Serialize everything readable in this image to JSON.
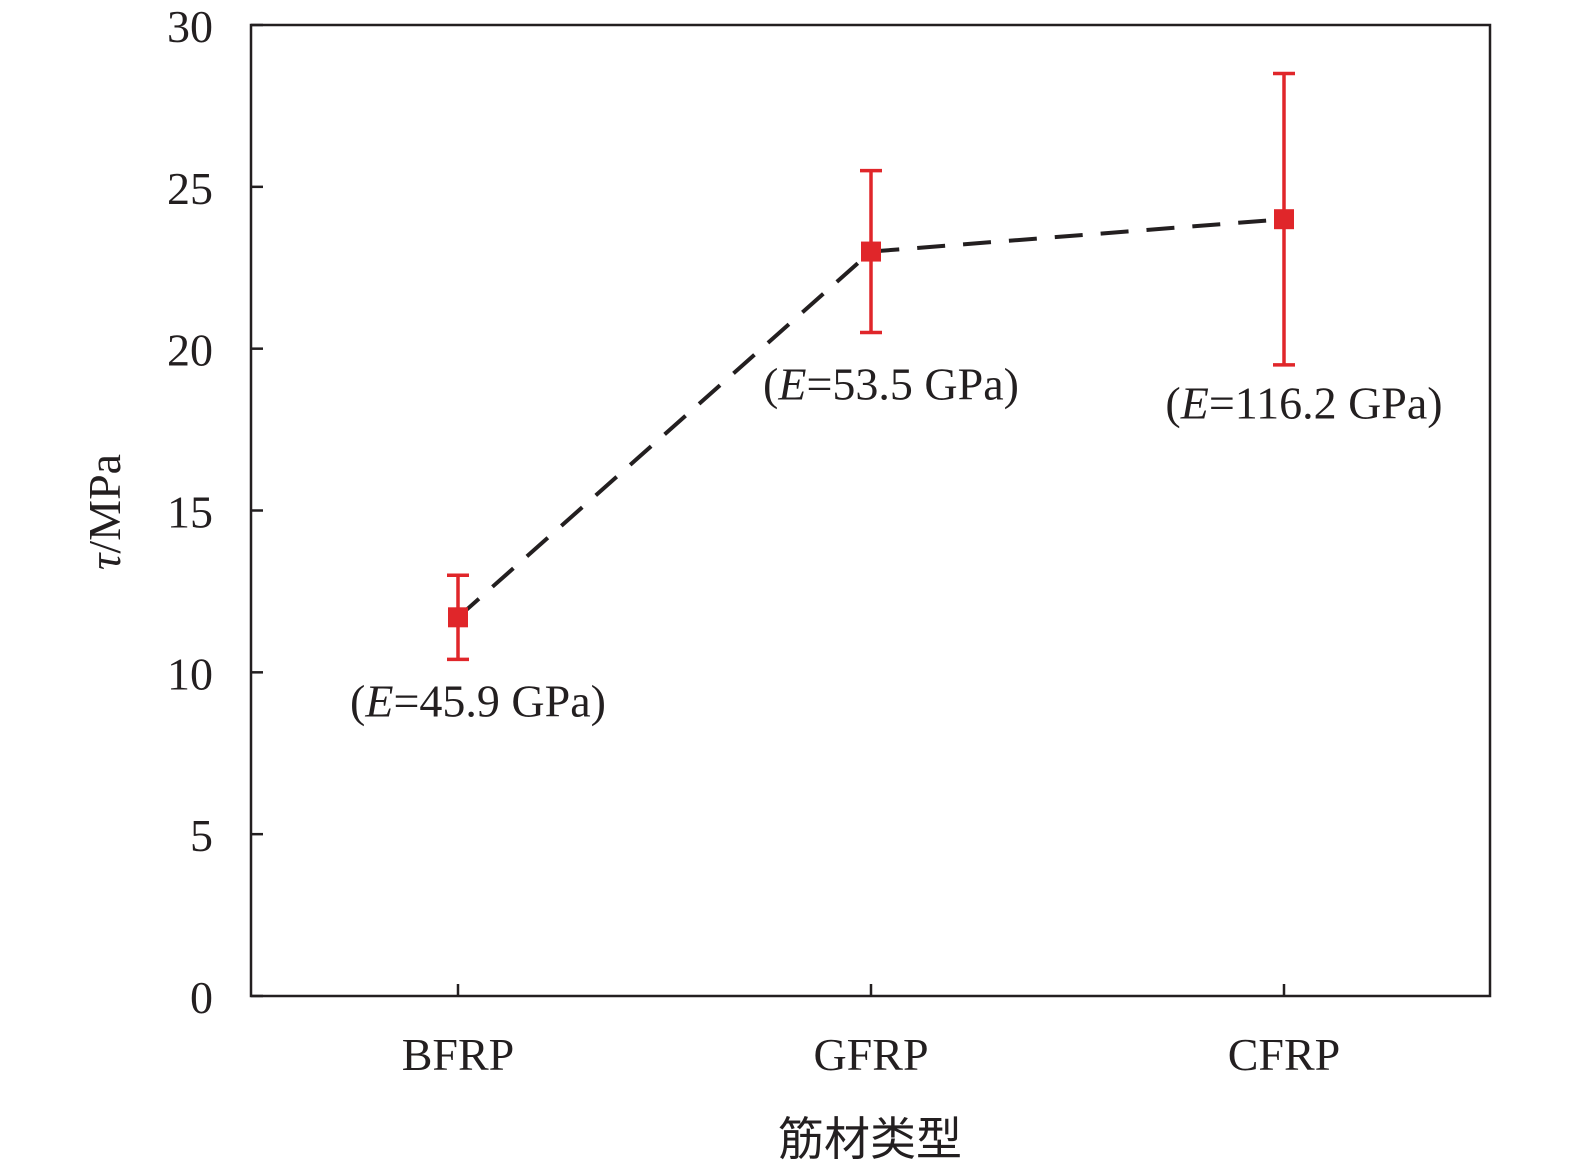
{
  "chart_data": {
    "type": "line",
    "categories": [
      "BFRP",
      "GFRP",
      "CFRP"
    ],
    "xlabel": "筋材类型",
    "ylabel": "τ/MPa",
    "ylabel_symbol": "τ",
    "ylabel_unit": "/MPa",
    "ylim": [
      0,
      30
    ],
    "yticks": [
      0,
      5,
      10,
      15,
      20,
      25,
      30
    ],
    "grid": false,
    "legend": "none",
    "series": [
      {
        "values": [
          11.7,
          23.0,
          24.0
        ],
        "err_low": [
          10.4,
          20.5,
          19.5
        ],
        "err_high": [
          13.0,
          25.5,
          28.5
        ],
        "line_style": "dashed"
      }
    ],
    "annotations": [
      {
        "category": "BFRP",
        "prefix": "(",
        "symbol": "E",
        "text": "=45.9 GPa)",
        "anchor_y": 9.1
      },
      {
        "category": "GFRP",
        "prefix": "(",
        "symbol": "E",
        "text": "=53.5 GPa)",
        "anchor_y": 18.9
      },
      {
        "category": "CFRP",
        "prefix": "(",
        "symbol": "E",
        "text": "=116.2 GPa)",
        "anchor_y": 18.3
      }
    ],
    "colors": {
      "marker": "#e0262a",
      "errorbar": "#e0262a",
      "line": "#231f20",
      "axis": "#231f20"
    }
  }
}
